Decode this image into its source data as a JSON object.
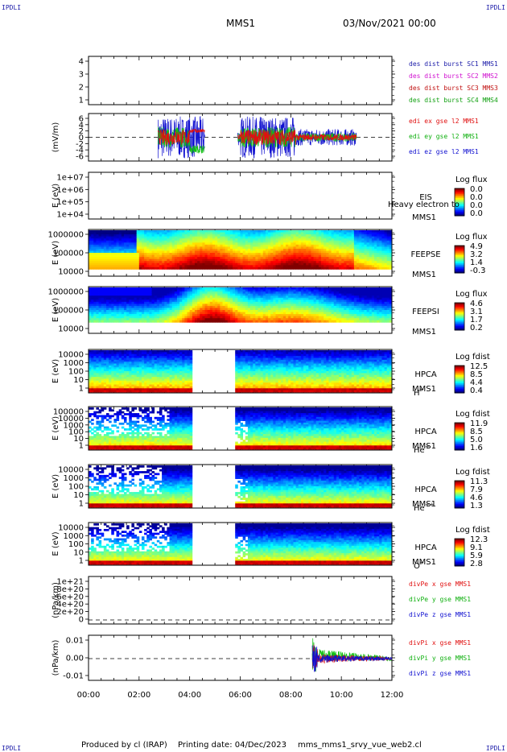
{
  "header": {
    "corner_label": "IPDLI",
    "mission": "MMS1",
    "datetime": "03/Nov/2021 00:00"
  },
  "footer": {
    "produced_by": "Produced by cl (IRAP)",
    "printing_date": "Printing date: 04/Dec/2023",
    "script_name": "mms_mms1_srvy_vue_web2.cl"
  },
  "colors": {
    "red": "#e01010",
    "green": "#10c010",
    "blue": "#1010d0",
    "magenta": "#d010d0",
    "navy": "#1a1aa8"
  },
  "chart_data": {
    "type": "heatmap",
    "x_ticks": [
      "00:00",
      "02:00",
      "04:00",
      "06:00",
      "08:00",
      "10:00",
      "12:00"
    ],
    "panels": [
      {
        "id": "des-burst",
        "yticks": [
          "4",
          "3",
          "2",
          "1"
        ],
        "ylim": [
          0.6,
          4.4
        ],
        "legend": [
          {
            "text": "des dist burst SC1 MMS1",
            "color": "#1a1aa8"
          },
          {
            "text": "des dist burst SC2 MMS2",
            "color": "#d010d0"
          },
          {
            "text": "des dist burst SC3 MMS3",
            "color": "#c01010"
          },
          {
            "text": "des dist burst SC4 MMS4",
            "color": "#10a010"
          }
        ]
      },
      {
        "id": "edi",
        "ylabel": "(mV/m)",
        "yticks": [
          "6",
          "4",
          "2",
          "0",
          "-2",
          "-4",
          "-6"
        ],
        "ylim": [
          -6,
          6
        ],
        "legend": [
          {
            "text": "edi ex gse l2 MMS1",
            "color": "#e01010"
          },
          {
            "text": "edi ey gse l2 MMS1",
            "color": "#10b010"
          },
          {
            "text": "edi ez gse l2 MMS1",
            "color": "#1010d0"
          }
        ]
      },
      {
        "id": "eis",
        "ylabel": "E (eV)",
        "yticks": [
          "1e+07",
          "1e+06",
          "1e+05",
          "1e+04"
        ],
        "right_labels": [
          "EIS",
          "MMS1"
        ],
        "right_extra": "Heavy electron to",
        "colorbar": {
          "title": "Log flux",
          "values": [
            "0.0",
            "0.0",
            "0.0",
            "0.0"
          ]
        }
      },
      {
        "id": "feepse",
        "ylabel": "E (eV)",
        "yticks": [
          "1000000",
          "100000",
          "10000"
        ],
        "right_labels": [
          "FEEPSE",
          "MMS1"
        ],
        "colorbar": {
          "title": "Log flux",
          "values": [
            "4.9",
            "3.2",
            "1.4",
            "-0.3"
          ]
        }
      },
      {
        "id": "feepsi",
        "ylabel": "E (eV)",
        "yticks": [
          "1000000",
          "100000",
          "10000"
        ],
        "right_labels": [
          "FEEPSI",
          "MMS1"
        ],
        "colorbar": {
          "title": "Log flux",
          "values": [
            "4.6",
            "3.1",
            "1.7",
            "0.2"
          ]
        }
      },
      {
        "id": "hpca-h",
        "ylabel": "E (eV)",
        "yticks": [
          "10000",
          "1000",
          "100",
          "10",
          "1"
        ],
        "right_labels": [
          "HPCA",
          "MMS1"
        ],
        "species": "H",
        "species_sup": "+",
        "colorbar": {
          "title": "Log fdist",
          "values": [
            "12.5",
            "8.5",
            "4.4",
            "0.4"
          ]
        }
      },
      {
        "id": "hpca-he",
        "ylabel": "E (eV)",
        "yticks": [
          "100000",
          "10000",
          "1000",
          "100",
          "10",
          "1"
        ],
        "right_labels": [
          "HPCA",
          "MMS1"
        ],
        "species": "He",
        "species_sup": "+",
        "colorbar": {
          "title": "Log fdist",
          "values": [
            "11.9",
            "8.5",
            "5.0",
            "1.6"
          ]
        }
      },
      {
        "id": "hpca-hepp",
        "ylabel": "E (eV)",
        "yticks": [
          "10000",
          "1000",
          "100",
          "10",
          "1"
        ],
        "right_labels": [
          "HPCA",
          "MMS1"
        ],
        "species": "He",
        "species_sup": "++",
        "colorbar": {
          "title": "Log fdist",
          "values": [
            "11.3",
            "7.9",
            "4.6",
            "1.3"
          ]
        }
      },
      {
        "id": "hpca-o",
        "ylabel": "E (eV)",
        "yticks": [
          "10000",
          "1000",
          "100",
          "10",
          "1"
        ],
        "right_labels": [
          "HPCA",
          "MMS1"
        ],
        "species": "O",
        "species_sup": "+",
        "colorbar": {
          "title": "Log fdist",
          "values": [
            "12.3",
            "9.1",
            "5.9",
            "2.8"
          ]
        }
      },
      {
        "id": "divpe",
        "ylabel": "(nPa/km)",
        "yticks": [
          "1e+21",
          "8e+20",
          "6e+20",
          "4e+20",
          "2e+20",
          "0"
        ],
        "ylim": [
          0,
          1e+21
        ],
        "legend": [
          {
            "text": "divPe x gse MMS1",
            "color": "#e01010"
          },
          {
            "text": "divPe y gse MMS1",
            "color": "#10b010"
          },
          {
            "text": "divPe z gse MMS1",
            "color": "#1010d0"
          }
        ]
      },
      {
        "id": "divpi",
        "ylabel": "(nPa/km)",
        "yticks": [
          "0.01",
          "0.00",
          "-0.01"
        ],
        "ylim": [
          -0.015,
          0.015
        ],
        "legend": [
          {
            "text": "divPi x gse MMS1",
            "color": "#e01010"
          },
          {
            "text": "divPi y gse MMS1",
            "color": "#10b010"
          },
          {
            "text": "divPi z gse MMS1",
            "color": "#1010d0"
          }
        ]
      }
    ]
  }
}
